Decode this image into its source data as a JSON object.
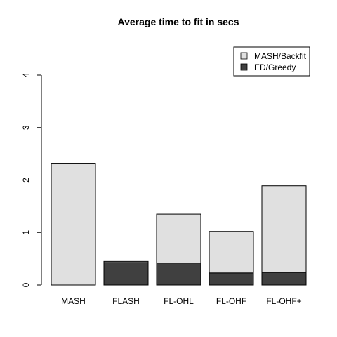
{
  "chart_data": {
    "type": "bar",
    "stacked": true,
    "title": "Average time to fit in secs",
    "xlabel": "",
    "ylabel": "",
    "categories": [
      "MASH",
      "FLASH",
      "FL-OHL",
      "FL-OHF",
      "FL-OHF+"
    ],
    "series": [
      {
        "name": "ED/Greedy",
        "color": "#404040",
        "values": [
          0.0,
          0.43,
          0.42,
          0.23,
          0.24
        ]
      },
      {
        "name": "MASH/Backfit",
        "color": "#e0e0e0",
        "values": [
          2.32,
          0.02,
          0.93,
          0.79,
          1.65
        ]
      }
    ],
    "ylim": [
      0,
      4
    ],
    "yticks": [
      "0",
      "1",
      "2",
      "3",
      "4"
    ],
    "legend": {
      "position": "top-right",
      "entries": [
        "MASH/Backfit",
        "ED/Greedy"
      ]
    },
    "grid": false
  }
}
